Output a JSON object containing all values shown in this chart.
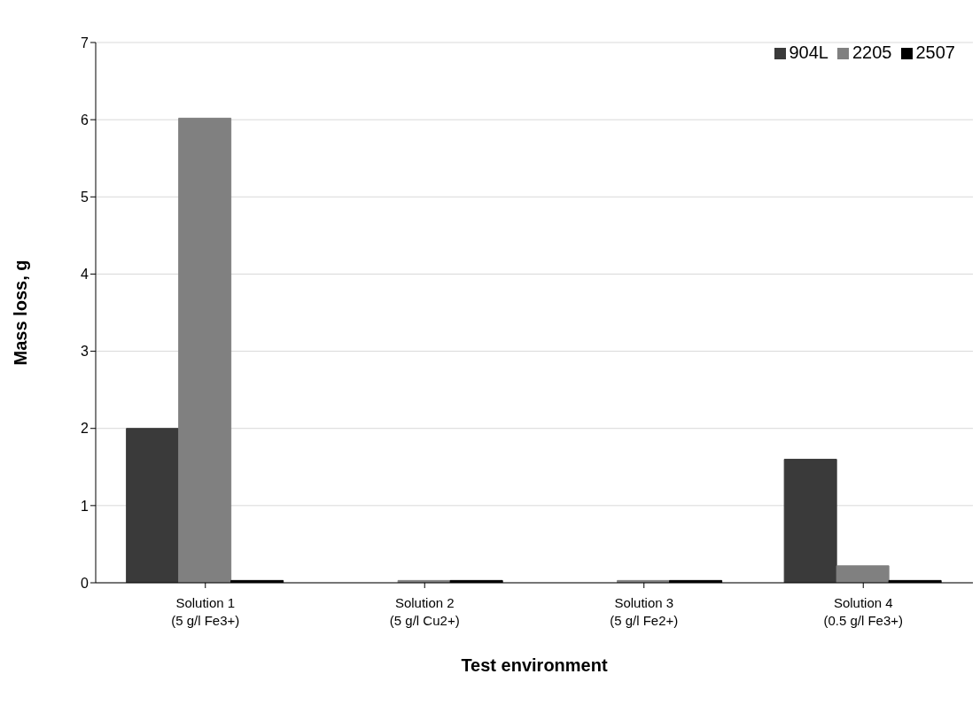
{
  "chart_data": {
    "type": "bar",
    "xlabel": "Test environment",
    "ylabel": "Mass loss, g",
    "categories": [
      "Solution 1\n(5 g/l Fe3+)",
      "Solution 2\n(5 g/l Cu2+)",
      "Solution 3\n(5 g/l Fe2+)",
      "Solution 4\n(0.5 g/l Fe3+)"
    ],
    "series": [
      {
        "name": "904L",
        "color": "#3a3a3a",
        "values": [
          2.0,
          0,
          0,
          1.6
        ]
      },
      {
        "name": "2205",
        "color": "#808080",
        "values": [
          6.02,
          0.03,
          0.03,
          0.22
        ]
      },
      {
        "name": "2507",
        "color": "#000000",
        "values": [
          0.03,
          0.03,
          0.03,
          0.03
        ]
      }
    ],
    "ylim": [
      0,
      7
    ],
    "yticks": [
      0,
      1,
      2,
      3,
      4,
      5,
      6,
      7
    ],
    "grid": "y",
    "legend": "top right"
  }
}
